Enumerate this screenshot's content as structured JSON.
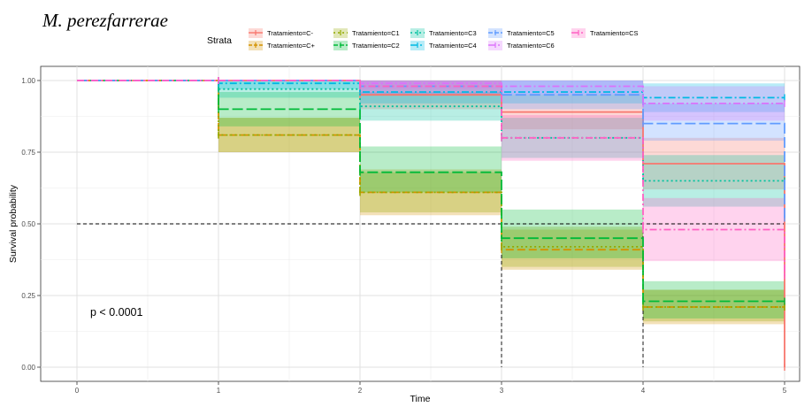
{
  "chart_data": {
    "type": "line",
    "title": "M. perezfarrerae",
    "xlabel": "Time",
    "ylabel": "Survival probability",
    "xlim": [
      0,
      5
    ],
    "ylim": [
      0,
      1
    ],
    "x_ticks": [
      "0",
      "1",
      "2",
      "3",
      "4",
      "5"
    ],
    "y_ticks": [
      "0.00",
      "0.25",
      "0.50",
      "0.75",
      "1.00"
    ],
    "x": [
      0,
      1,
      2,
      3,
      4,
      5
    ],
    "grid": true,
    "legend_title": "Strata",
    "legend_position": "top",
    "median_reference_line": 0.5,
    "annotation": "p < 0.0001",
    "series": [
      {
        "name": "Tratamiento=C-",
        "color": "#F8766D",
        "dash": "solid",
        "values": [
          1.0,
          1.0,
          0.95,
          0.89,
          0.71,
          0.0
        ],
        "lower": [
          1.0,
          1.0,
          0.9,
          0.83,
          0.62,
          0.0
        ],
        "upper": [
          1.0,
          1.0,
          1.0,
          0.95,
          0.8,
          0.0
        ]
      },
      {
        "name": "Tratamiento=C+",
        "color": "#D39200",
        "dash": "dashed",
        "values": [
          1.0,
          0.81,
          0.61,
          0.41,
          0.21,
          0.21
        ],
        "lower": [
          1.0,
          0.75,
          0.53,
          0.34,
          0.15,
          0.15
        ],
        "upper": [
          1.0,
          0.87,
          0.69,
          0.48,
          0.27,
          0.27
        ]
      },
      {
        "name": "Tratamiento=C1",
        "color": "#93AA00",
        "dash": "dotted",
        "values": [
          1.0,
          0.81,
          0.61,
          0.42,
          0.21,
          0.21
        ],
        "lower": [
          1.0,
          0.75,
          0.54,
          0.35,
          0.16,
          0.16
        ],
        "upper": [
          1.0,
          0.87,
          0.68,
          0.49,
          0.27,
          0.27
        ]
      },
      {
        "name": "Tratamiento=C2",
        "color": "#00BA38",
        "dash": "longdash",
        "values": [
          1.0,
          0.9,
          0.68,
          0.45,
          0.23,
          0.23
        ],
        "lower": [
          1.0,
          0.84,
          0.61,
          0.38,
          0.17,
          0.17
        ],
        "upper": [
          1.0,
          0.96,
          0.77,
          0.55,
          0.3,
          0.3
        ]
      },
      {
        "name": "Tratamiento=C3",
        "color": "#00C19F",
        "dash": "dotted",
        "values": [
          1.0,
          0.97,
          0.91,
          0.8,
          0.65,
          0.65
        ],
        "lower": [
          1.0,
          0.94,
          0.86,
          0.73,
          0.56,
          0.56
        ],
        "upper": [
          1.0,
          1.0,
          0.96,
          0.87,
          0.74,
          0.74
        ]
      },
      {
        "name": "Tratamiento=C4",
        "color": "#00B9E3",
        "dash": "dotdash",
        "values": [
          1.0,
          0.99,
          0.96,
          0.96,
          0.94,
          0.94
        ],
        "lower": [
          1.0,
          0.97,
          0.92,
          0.92,
          0.89,
          0.89
        ],
        "upper": [
          1.0,
          1.0,
          1.0,
          1.0,
          0.99,
          0.99
        ]
      },
      {
        "name": "Tratamiento=C5",
        "color": "#619CFF",
        "dash": "longdash",
        "values": [
          1.0,
          1.0,
          0.98,
          0.95,
          0.85,
          0.52
        ],
        "lower": [
          1.0,
          1.0,
          0.95,
          0.9,
          0.79,
          0.52
        ],
        "upper": [
          1.0,
          1.0,
          1.0,
          1.0,
          0.92,
          0.52
        ]
      },
      {
        "name": "Tratamiento=C6",
        "color": "#DB72FB",
        "dash": "dotdash",
        "values": [
          1.0,
          1.0,
          0.99,
          0.98,
          0.92,
          0.92
        ],
        "lower": [
          1.0,
          1.0,
          0.97,
          0.95,
          0.86,
          0.86
        ],
        "upper": [
          1.0,
          1.0,
          1.0,
          1.0,
          0.98,
          0.98
        ]
      },
      {
        "name": "Tratamiento=CS",
        "color": "#FF61C3",
        "dash": "dotdash",
        "values": [
          1.0,
          1.0,
          0.98,
          0.8,
          0.48,
          0.32
        ],
        "lower": [
          1.0,
          1.0,
          0.95,
          0.72,
          0.37,
          0.32
        ],
        "upper": [
          1.0,
          1.0,
          1.0,
          0.88,
          0.59,
          0.32
        ]
      }
    ]
  }
}
